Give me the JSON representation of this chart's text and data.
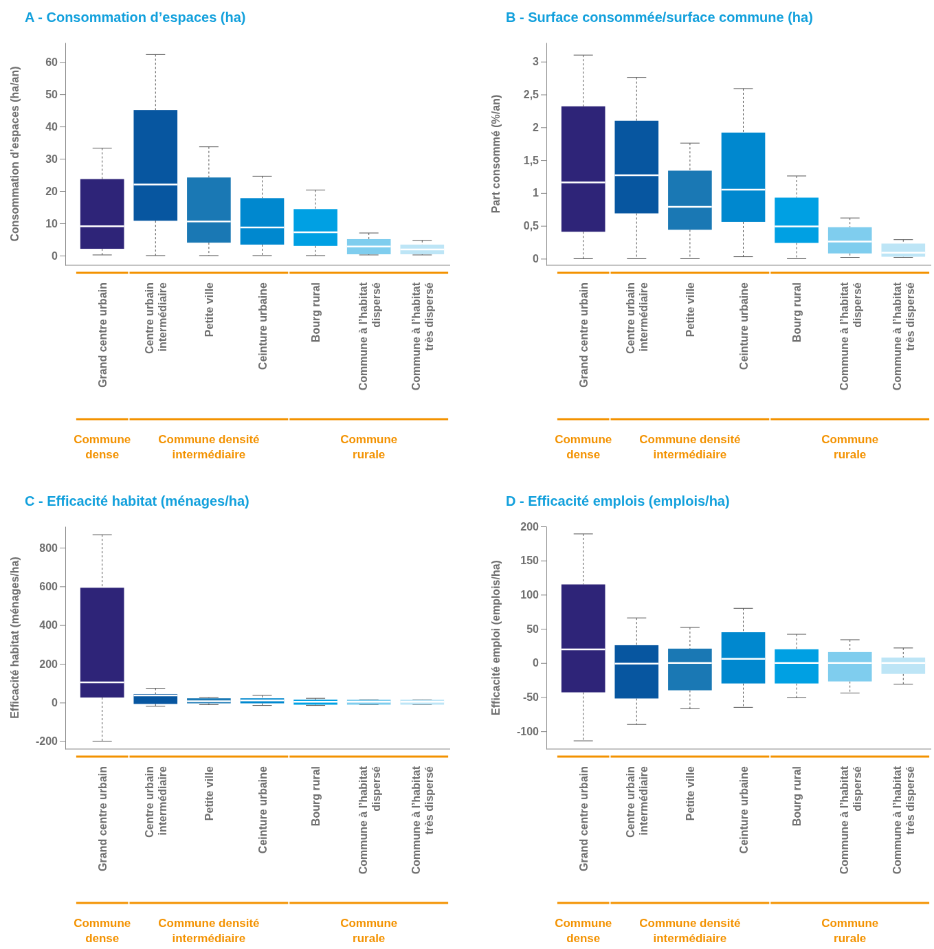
{
  "chart_data": [
    {
      "type": "box",
      "title": "A - Consommation d’espaces (ha)",
      "ylabel": "Consommation d’espaces (ha/an)",
      "categories": [
        "Grand centre urbain",
        "Centre urbain\nintermédiaire",
        "Petite ville",
        "Ceinture urbaine",
        "Bourg rural",
        "Commune à l’habitat\ndispersé",
        "Commune à l’habitat\ntrès dispersé"
      ],
      "colors": [
        "#2e2478",
        "#0756a0",
        "#1a78b4",
        "#0088cf",
        "#00a0e3",
        "#7fcdee",
        "#bde5f6"
      ],
      "boxes": [
        {
          "low": 0.2,
          "q1": 2.1,
          "median": 9.1,
          "q3": 23.7,
          "high": 33.3
        },
        {
          "low": 0,
          "q1": 10.8,
          "median": 22,
          "q3": 45.1,
          "high": 62.3
        },
        {
          "low": 0,
          "q1": 4,
          "median": 10.6,
          "q3": 24.2,
          "high": 33.7
        },
        {
          "low": 0,
          "q1": 3.4,
          "median": 8.7,
          "q3": 17.8,
          "high": 24.6
        },
        {
          "low": 0,
          "q1": 3,
          "median": 7.2,
          "q3": 14.4,
          "high": 20.3
        },
        {
          "low": 0.2,
          "q1": 0.4,
          "median": 2.8,
          "q3": 5.1,
          "high": 7
        },
        {
          "low": 0.2,
          "q1": 0.4,
          "median": 1.9,
          "q3": 3.4,
          "high": 4.7
        }
      ],
      "ylim": [
        -3,
        66
      ],
      "yticks": [
        0,
        10,
        20,
        30,
        40,
        50,
        60
      ],
      "annotations": [
        "Commune\ndense",
        "Commune densité\nintermédiaire",
        "Commune\nrurale"
      ]
    },
    {
      "type": "box",
      "title": "B - Surface consommée/surface commune (ha)",
      "ylabel": "Part consommé (%/an)",
      "categories": [
        "Grand centre urbain",
        "Centre urbain\nintermédiaire",
        "Petite ville",
        "Ceinture urbaine",
        "Bourg rural",
        "Commune à l’habitat\ndispersé",
        "Commune à l’habitat\ntrès dispersé"
      ],
      "colors": [
        "#2e2478",
        "#0756a0",
        "#1a78b4",
        "#0088cf",
        "#00a0e3",
        "#7fcdee",
        "#bde5f6"
      ],
      "boxes": [
        {
          "low": 0,
          "q1": 0.41,
          "median": 1.16,
          "q3": 2.32,
          "high": 3.1
        },
        {
          "low": 0,
          "q1": 0.69,
          "median": 1.27,
          "q3": 2.1,
          "high": 2.76
        },
        {
          "low": 0,
          "q1": 0.44,
          "median": 0.79,
          "q3": 1.34,
          "high": 1.76
        },
        {
          "low": 0.03,
          "q1": 0.56,
          "median": 1.05,
          "q3": 1.92,
          "high": 2.59
        },
        {
          "low": 0,
          "q1": 0.24,
          "median": 0.49,
          "q3": 0.93,
          "high": 1.26
        },
        {
          "low": 0.02,
          "q1": 0.08,
          "median": 0.26,
          "q3": 0.48,
          "high": 0.62
        },
        {
          "low": 0.02,
          "q1": 0.03,
          "median": 0.09,
          "q3": 0.23,
          "high": 0.29
        }
      ],
      "ylim": [
        -0.1,
        3.29
      ],
      "yticks": [
        0,
        {
          "value": 0.5,
          "label": "0,5"
        },
        1,
        {
          "value": 1.5,
          "label": "1,5"
        },
        2,
        {
          "value": 2.5,
          "label": "2,5"
        },
        3
      ],
      "annotations": [
        "Commune\ndense",
        "Commune densité\nintermédiaire",
        "Commune\nrurale"
      ]
    },
    {
      "type": "box",
      "title": "C - Efficacité habitat (ménages/ha)",
      "ylabel": "Efficacité habitat (ménages/ha)",
      "categories": [
        "Grand centre urbain",
        "Centre urbain\nintermédiaire",
        "Petite ville",
        "Ceinture urbaine",
        "Bourg rural",
        "Commune à l’habitat\ndispersé",
        "Commune à l’habitat\ntrès dispersé"
      ],
      "colors": [
        "#2e2478",
        "#0756a0",
        "#1a78b4",
        "#0088cf",
        "#00a0e3",
        "#7fcdee",
        "#bde5f6"
      ],
      "boxes": [
        {
          "low": -200,
          "q1": 26,
          "median": 104,
          "q3": 593,
          "high": 867
        },
        {
          "low": -19,
          "q1": -7,
          "median": 37,
          "q3": 44,
          "high": 74
        },
        {
          "low": -11,
          "q1": -4,
          "median": 7,
          "q3": 22,
          "high": 26
        },
        {
          "low": -15,
          "q1": -4,
          "median": 11,
          "q3": 22,
          "high": 37
        },
        {
          "low": -15,
          "q1": -11,
          "median": 4,
          "q3": 15,
          "high": 22
        },
        {
          "low": -11,
          "q1": -11,
          "median": 4,
          "q3": 15,
          "high": 15
        },
        {
          "low": -11,
          "q1": -11,
          "median": 4,
          "q3": 15,
          "high": 15
        }
      ],
      "ylim": [
        -240,
        910
      ],
      "yticks": [
        -200,
        0,
        200,
        400,
        600,
        800
      ],
      "annotations": [
        "Commune\ndense",
        "Commune densité\nintermédiaire",
        "Commune\nrurale"
      ]
    },
    {
      "type": "box",
      "title": "D - Efficacité emplois (emplois/ha)",
      "ylabel": "Efficacité emploi (emplois/ha)",
      "categories": [
        "Grand centre urbain",
        "Centre urbain\nintermédiaire",
        "Petite ville",
        "Ceinture urbaine",
        "Bourg rural",
        "Commune à l’habitat\ndispersé",
        "Commune à l’habitat\ntrès dispersé"
      ],
      "colors": [
        "#2e2478",
        "#0756a0",
        "#1a78b4",
        "#0088cf",
        "#00a0e3",
        "#7fcdee",
        "#bde5f6"
      ],
      "boxes": [
        {
          "low": -114,
          "q1": -43,
          "median": 20,
          "q3": 115,
          "high": 189
        },
        {
          "low": -90,
          "q1": -52,
          "median": -1,
          "q3": 26,
          "high": 66
        },
        {
          "low": -67,
          "q1": -40,
          "median": 0,
          "q3": 21,
          "high": 52
        },
        {
          "low": -65,
          "q1": -30,
          "median": 6,
          "q3": 45,
          "high": 80
        },
        {
          "low": -51,
          "q1": -30,
          "median": 0,
          "q3": 20,
          "high": 42
        },
        {
          "low": -44,
          "q1": -27,
          "median": 0,
          "q3": 16,
          "high": 34
        },
        {
          "low": -31,
          "q1": -16,
          "median": 0,
          "q3": 8,
          "high": 22
        }
      ],
      "ylim": [
        -126,
        200
      ],
      "yticks": [
        -100,
        -50,
        0,
        50,
        100,
        150,
        200
      ],
      "annotations": [
        "Commune\ndense",
        "Commune densité\nintermédiaire",
        "Commune\nrurale"
      ]
    }
  ]
}
